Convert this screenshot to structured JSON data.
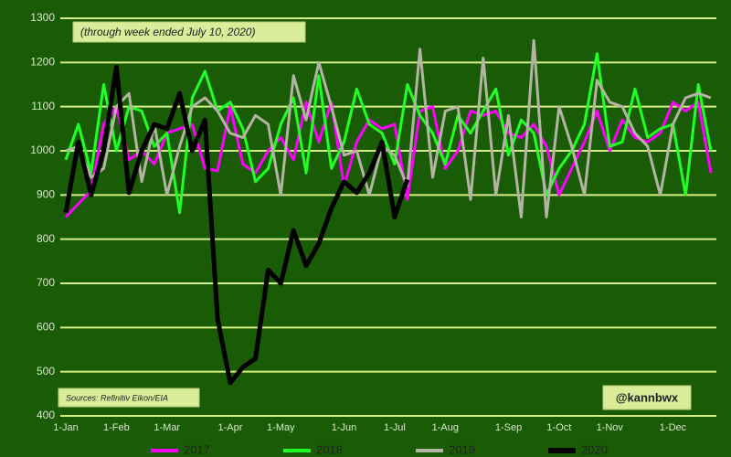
{
  "chart_data": {
    "type": "line",
    "subtitle": "(through week ended July 10, 2020)",
    "source": "Sources: Refinitiv Eikon/EIA",
    "credit": "@kannbwx",
    "categories": [
      "1-Jan",
      null,
      null,
      null,
      "1-Feb",
      null,
      null,
      null,
      "1-Mar",
      null,
      null,
      null,
      null,
      "1-Apr",
      null,
      null,
      null,
      "1-May",
      null,
      null,
      null,
      null,
      "1-Jun",
      null,
      null,
      null,
      "1-Jul",
      null,
      null,
      null,
      "1-Aug",
      null,
      null,
      null,
      null,
      "1-Sep",
      null,
      null,
      null,
      "1-Oct",
      null,
      null,
      null,
      "1-Nov",
      null,
      null,
      null,
      null,
      "1-Dec",
      null,
      null,
      null
    ],
    "ylim": [
      400,
      1300
    ],
    "yticks": [
      400,
      500,
      600,
      700,
      800,
      900,
      1000,
      1100,
      1200,
      1300
    ],
    "grid": true,
    "series": [
      {
        "name": "2017",
        "color": "#ff00ff",
        "width": 3,
        "values": [
          850,
          880,
          910,
          1060,
          1100,
          980,
          1000,
          970,
          1040,
          1050,
          1060,
          960,
          955,
          1100,
          970,
          950,
          1000,
          1030,
          980,
          1110,
          1020,
          1110,
          920,
          1020,
          1070,
          1050,
          1060,
          890,
          1090,
          1100,
          960,
          1000,
          1090,
          1080,
          1090,
          1040,
          1030,
          1060,
          1010,
          900,
          960,
          1020,
          1090,
          1000,
          1070,
          1030,
          1020,
          1040,
          1110,
          1090,
          1110,
          950
        ]
      },
      {
        "name": "2018",
        "color": "#22ff22",
        "width": 3,
        "values": [
          980,
          1060,
          950,
          1150,
          1000,
          1100,
          1090,
          1010,
          1040,
          860,
          1120,
          1180,
          1090,
          1110,
          1050,
          930,
          960,
          1060,
          1120,
          950,
          1170,
          960,
          1020,
          1140,
          1060,
          1040,
          970,
          1150,
          1080,
          1040,
          970,
          1080,
          1040,
          1090,
          1140,
          990,
          1070,
          1040,
          900,
          960,
          1000,
          1060,
          1220,
          1010,
          1020,
          1140,
          1030,
          1050,
          1060,
          900,
          1150,
          1000
        ]
      },
      {
        "name": "2019",
        "color": "#b4b4a4",
        "width": 3,
        "values": [
          1000,
          1010,
          940,
          960,
          1100,
          1130,
          930,
          1060,
          900,
          1010,
          1100,
          1120,
          1090,
          1040,
          1030,
          1080,
          1060,
          900,
          1170,
          1070,
          1200,
          1100,
          990,
          1000,
          900,
          1010,
          990,
          920,
          1230,
          940,
          1090,
          1100,
          890,
          1210,
          900,
          1080,
          850,
          1250,
          850,
          1100,
          1010,
          900,
          1160,
          1110,
          1100,
          1040,
          1010,
          900,
          1060,
          1120,
          1130,
          1120
        ]
      },
      {
        "name": "2020",
        "color": "#000000",
        "width": 5,
        "values": [
          860,
          1020,
          900,
          1000,
          1190,
          905,
          1000,
          1060,
          1050,
          1130,
          1000,
          1070,
          620,
          475,
          510,
          530,
          730,
          700,
          820,
          740,
          790,
          870,
          930,
          905,
          950,
          1020,
          850,
          935,
          null,
          null,
          null,
          null,
          null,
          null,
          null,
          null,
          null,
          null,
          null,
          null,
          null,
          null,
          null,
          null,
          null,
          null,
          null,
          null,
          null,
          null,
          null,
          null
        ]
      }
    ]
  }
}
